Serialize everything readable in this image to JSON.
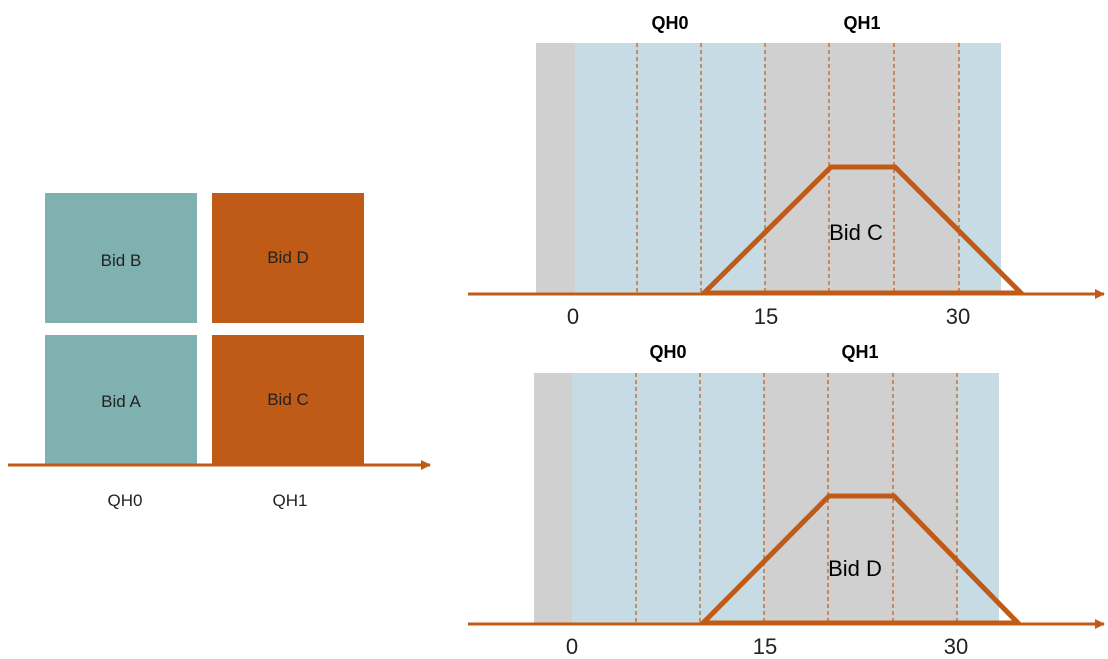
{
  "left_diagram": {
    "blocks": [
      {
        "name": "bid-b-block",
        "label": "Bid B",
        "color": "#7fb1b0"
      },
      {
        "name": "bid-d-block",
        "label": "Bid D",
        "color": "#bf5b17"
      },
      {
        "name": "bid-a-block",
        "label": "Bid A",
        "color": "#7fb1b0"
      },
      {
        "name": "bid-c-block",
        "label": "Bid C",
        "color": "#bf5b17"
      }
    ],
    "axis_labels": [
      "QH0",
      "QH1"
    ]
  },
  "profiles": [
    {
      "bid_label": "Bid C",
      "header_labels": [
        "QH0",
        "QH1"
      ],
      "tick_labels": [
        "0",
        "15",
        "30"
      ]
    },
    {
      "bid_label": "Bid D",
      "header_labels": [
        "QH0",
        "QH1"
      ],
      "tick_labels": [
        "0",
        "15",
        "30"
      ]
    }
  ],
  "colors": {
    "teal": "#7fb1b0",
    "orange": "#bf5b17",
    "gray_band": "#d0d0d0",
    "blue_band": "#c6dbe4"
  }
}
